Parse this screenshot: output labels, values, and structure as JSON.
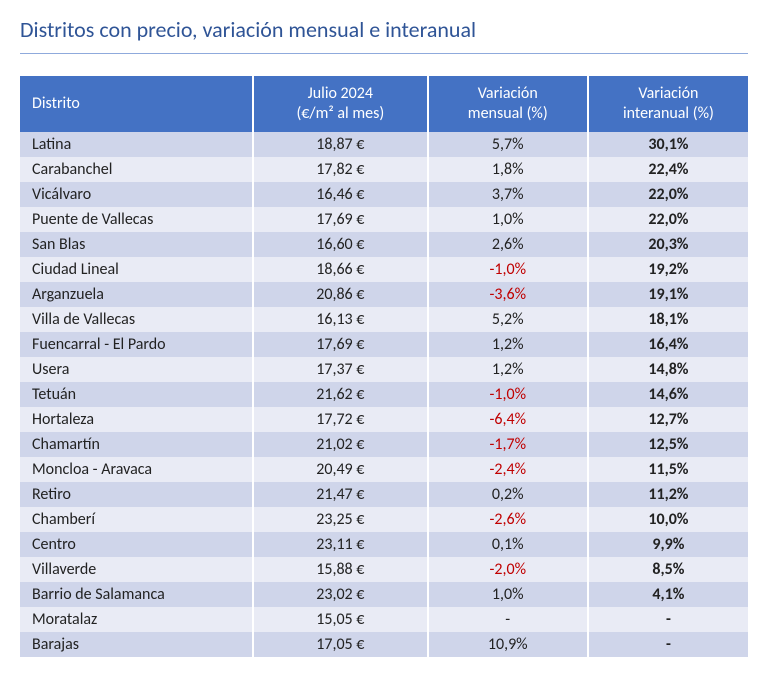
{
  "title": "Distritos con precio, variación mensual e interanual",
  "title_color": "#2f5496",
  "underline_color": "#8faadc",
  "header_bg": "#4472c4",
  "row_even_bg": "#cfd5ea",
  "row_odd_bg": "#e9ebf5",
  "columns": [
    "Distrito",
    "Julio 2024\n(€/m² al mes)",
    "Variación\nmensual (%)",
    "Variación\ninteranual (%)"
  ],
  "rows": [
    {
      "district": "Latina",
      "price": "18,87 €",
      "month": "5,7%",
      "month_neg": false,
      "year": "30,1%"
    },
    {
      "district": "Carabanchel",
      "price": "17,82 €",
      "month": "1,8%",
      "month_neg": false,
      "year": "22,4%"
    },
    {
      "district": "Vicálvaro",
      "price": "16,46 €",
      "month": "3,7%",
      "month_neg": false,
      "year": "22,0%"
    },
    {
      "district": "Puente de Vallecas",
      "price": "17,69 €",
      "month": "1,0%",
      "month_neg": false,
      "year": "22,0%"
    },
    {
      "district": "San Blas",
      "price": "16,60 €",
      "month": "2,6%",
      "month_neg": false,
      "year": "20,3%"
    },
    {
      "district": "Ciudad Lineal",
      "price": "18,66 €",
      "month": "-1,0%",
      "month_neg": true,
      "year": "19,2%"
    },
    {
      "district": "Arganzuela",
      "price": "20,86 €",
      "month": "-3,6%",
      "month_neg": true,
      "year": "19,1%"
    },
    {
      "district": "Villa de Vallecas",
      "price": "16,13 €",
      "month": "5,2%",
      "month_neg": false,
      "year": "18,1%"
    },
    {
      "district": "Fuencarral - El Pardo",
      "price": "17,69 €",
      "month": "1,2%",
      "month_neg": false,
      "year": "16,4%"
    },
    {
      "district": "Usera",
      "price": "17,37 €",
      "month": "1,2%",
      "month_neg": false,
      "year": "14,8%"
    },
    {
      "district": "Tetuán",
      "price": "21,62 €",
      "month": "-1,0%",
      "month_neg": true,
      "year": "14,6%"
    },
    {
      "district": "Hortaleza",
      "price": "17,72 €",
      "month": "-6,4%",
      "month_neg": true,
      "year": "12,7%"
    },
    {
      "district": "Chamartín",
      "price": "21,02 €",
      "month": "-1,7%",
      "month_neg": true,
      "year": "12,5%"
    },
    {
      "district": "Moncloa - Aravaca",
      "price": "20,49 €",
      "month": "-2,4%",
      "month_neg": true,
      "year": "11,5%"
    },
    {
      "district": "Retiro",
      "price": "21,47 €",
      "month": "0,2%",
      "month_neg": false,
      "year": "11,2%"
    },
    {
      "district": "Chamberí",
      "price": "23,25 €",
      "month": "-2,6%",
      "month_neg": true,
      "year": "10,0%"
    },
    {
      "district": "Centro",
      "price": "23,11 €",
      "month": "0,1%",
      "month_neg": false,
      "year": "9,9%"
    },
    {
      "district": "Villaverde",
      "price": "15,88 €",
      "month": "-2,0%",
      "month_neg": true,
      "year": "8,5%"
    },
    {
      "district": "Barrio de Salamanca",
      "price": "23,02 €",
      "month": "1,0%",
      "month_neg": false,
      "year": "4,1%"
    },
    {
      "district": "Moratalaz",
      "price": "15,05 €",
      "month": "-",
      "month_neg": false,
      "year": "-"
    },
    {
      "district": "Barajas",
      "price": "17,05 €",
      "month": "10,9%",
      "month_neg": false,
      "year": "-"
    }
  ]
}
